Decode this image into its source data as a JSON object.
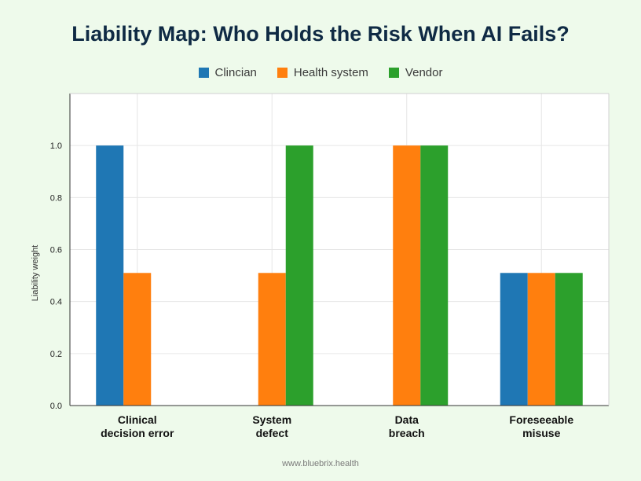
{
  "chart_data": {
    "type": "bar",
    "title": "Liability Map: Who Holds the Risk When AI Fails?",
    "xlabel": "",
    "ylabel": "Liability weight",
    "ylim": [
      0,
      1.2
    ],
    "yticks": [
      "0.0",
      "0.2",
      "0.4",
      "0.6",
      "0.8",
      "1.0"
    ],
    "grid": true,
    "legend_position": "top-center",
    "categories": [
      [
        "Clinical",
        "decision error"
      ],
      [
        "System",
        "defect"
      ],
      [
        "Data",
        "breach"
      ],
      [
        "Foreseeable",
        "misuse"
      ]
    ],
    "series": [
      {
        "name": "Clincian",
        "color": "#1f77b4",
        "values": [
          1.0,
          0.0,
          0.0,
          0.51
        ]
      },
      {
        "name": "Health system",
        "color": "#ff7f0e",
        "values": [
          0.51,
          0.51,
          1.0,
          0.51
        ]
      },
      {
        "name": "Vendor",
        "color": "#2ca02c",
        "values": [
          0.0,
          1.0,
          1.0,
          0.51
        ]
      }
    ]
  },
  "footer": "www.bluebrix.health"
}
